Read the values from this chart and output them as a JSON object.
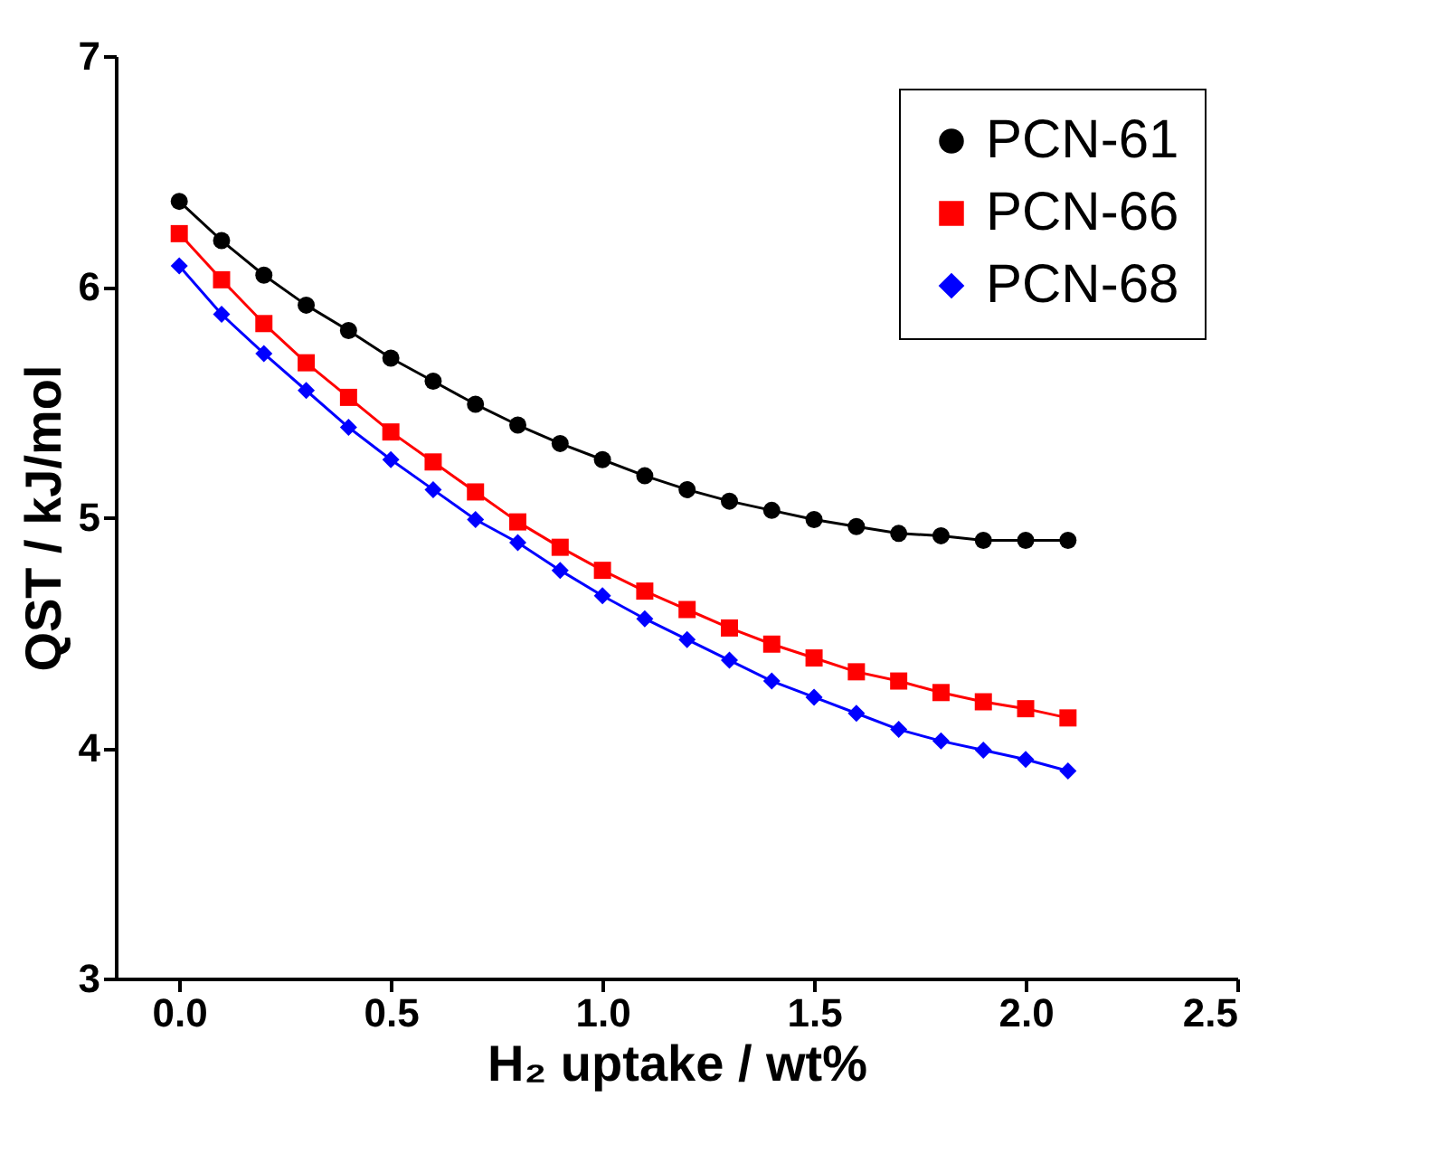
{
  "chart_data": {
    "type": "line",
    "xlabel": "H₂ uptake / wt%",
    "ylabel": "QST / kJ/mol",
    "x": [
      0.0,
      0.1,
      0.2,
      0.3,
      0.4,
      0.5,
      0.6,
      0.7,
      0.8,
      0.9,
      1.0,
      1.1,
      1.2,
      1.3,
      1.4,
      1.5,
      1.6,
      1.7,
      1.8,
      1.9,
      2.0,
      2.1
    ],
    "series": [
      {
        "name": "PCN-61",
        "color": "#000000",
        "marker": "circle",
        "values": [
          6.37,
          6.2,
          6.05,
          5.92,
          5.81,
          5.69,
          5.59,
          5.49,
          5.4,
          5.32,
          5.25,
          5.18,
          5.12,
          5.07,
          5.03,
          4.99,
          4.96,
          4.93,
          4.92,
          4.9,
          4.9,
          4.9
        ]
      },
      {
        "name": "PCN-66",
        "color": "#ff0000",
        "marker": "square",
        "values": [
          6.23,
          6.03,
          5.84,
          5.67,
          5.52,
          5.37,
          5.24,
          5.11,
          4.98,
          4.87,
          4.77,
          4.68,
          4.6,
          4.52,
          4.45,
          4.39,
          4.33,
          4.29,
          4.24,
          4.2,
          4.17,
          4.13
        ]
      },
      {
        "name": "PCN-68",
        "color": "#0000ff",
        "marker": "diamond",
        "values": [
          6.09,
          5.88,
          5.71,
          5.55,
          5.39,
          5.25,
          5.12,
          4.99,
          4.89,
          4.77,
          4.66,
          4.56,
          4.47,
          4.38,
          4.29,
          4.22,
          4.15,
          4.08,
          4.03,
          3.99,
          3.95,
          3.9
        ]
      }
    ],
    "xlim": [
      -0.15,
      2.5
    ],
    "xticks": [
      {
        "value": 0,
        "label": "0.0"
      },
      0.5,
      {
        "value": 1,
        "label": "1.0"
      },
      1.5,
      {
        "value": 2,
        "label": "2.0"
      },
      2.5
    ],
    "ylim": [
      3,
      7
    ],
    "yticks": [
      3,
      4,
      5,
      6,
      7
    ],
    "line_style": "solid",
    "legend": "top right",
    "grid": false
  }
}
